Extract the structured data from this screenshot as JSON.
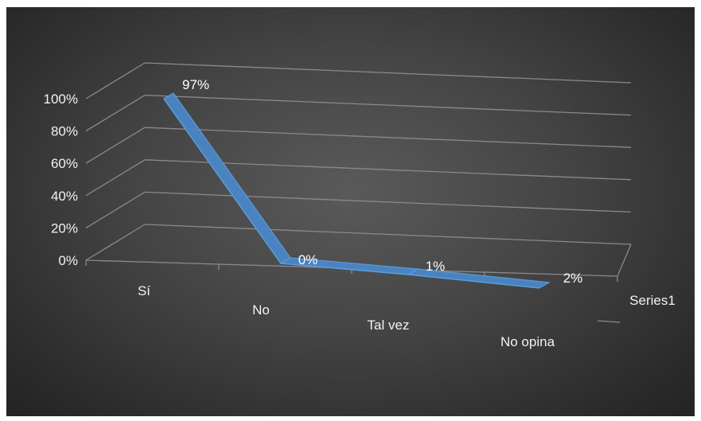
{
  "colors": {
    "series": "#4a86c5",
    "series_edge": "#5a9ee0",
    "gridline": "#8a8a8a",
    "text": "#f2f2f2"
  },
  "chart_data": {
    "type": "line",
    "style": "3d-ribbon",
    "categories": [
      "Sí",
      "No",
      "Tal vez",
      "No opina"
    ],
    "series": [
      {
        "name": "Series1",
        "values": [
          97,
          0,
          1,
          2
        ],
        "labels": [
          "97%",
          "0%",
          "1%",
          "2%"
        ]
      }
    ],
    "y_ticks": [
      "0%",
      "20%",
      "40%",
      "60%",
      "80%",
      "100%"
    ],
    "ylim": [
      0,
      100
    ],
    "y_unit": "percent",
    "title": "",
    "xlabel": "",
    "ylabel": "",
    "depth_axis_labels": [
      "Series1"
    ],
    "grid": true,
    "legend": "none"
  }
}
